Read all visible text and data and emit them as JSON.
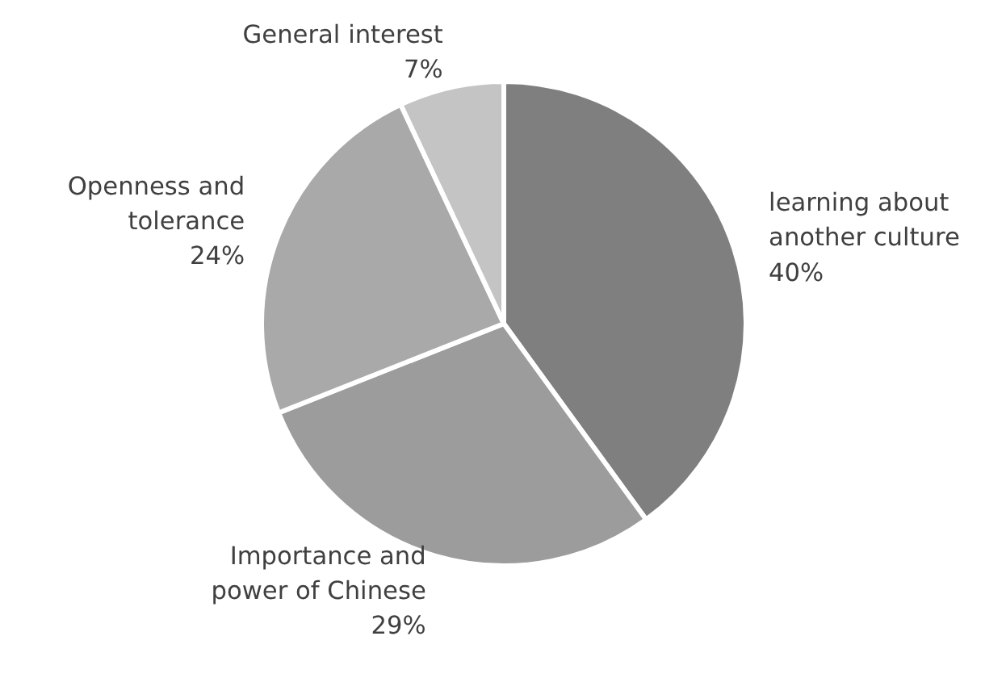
{
  "chart_data": {
    "type": "pie",
    "categories": [
      "learning about\nanother culture",
      "Importance and\npower of Chinese",
      "Openness and\ntolerance",
      "General interest"
    ],
    "values": [
      40,
      29,
      24,
      7
    ],
    "value_labels": [
      "40%",
      "29%",
      "24%",
      "7%"
    ],
    "colors": [
      "#7f7f7f",
      "#9c9c9c",
      "#a9a9a9",
      "#c4c4c4"
    ]
  }
}
